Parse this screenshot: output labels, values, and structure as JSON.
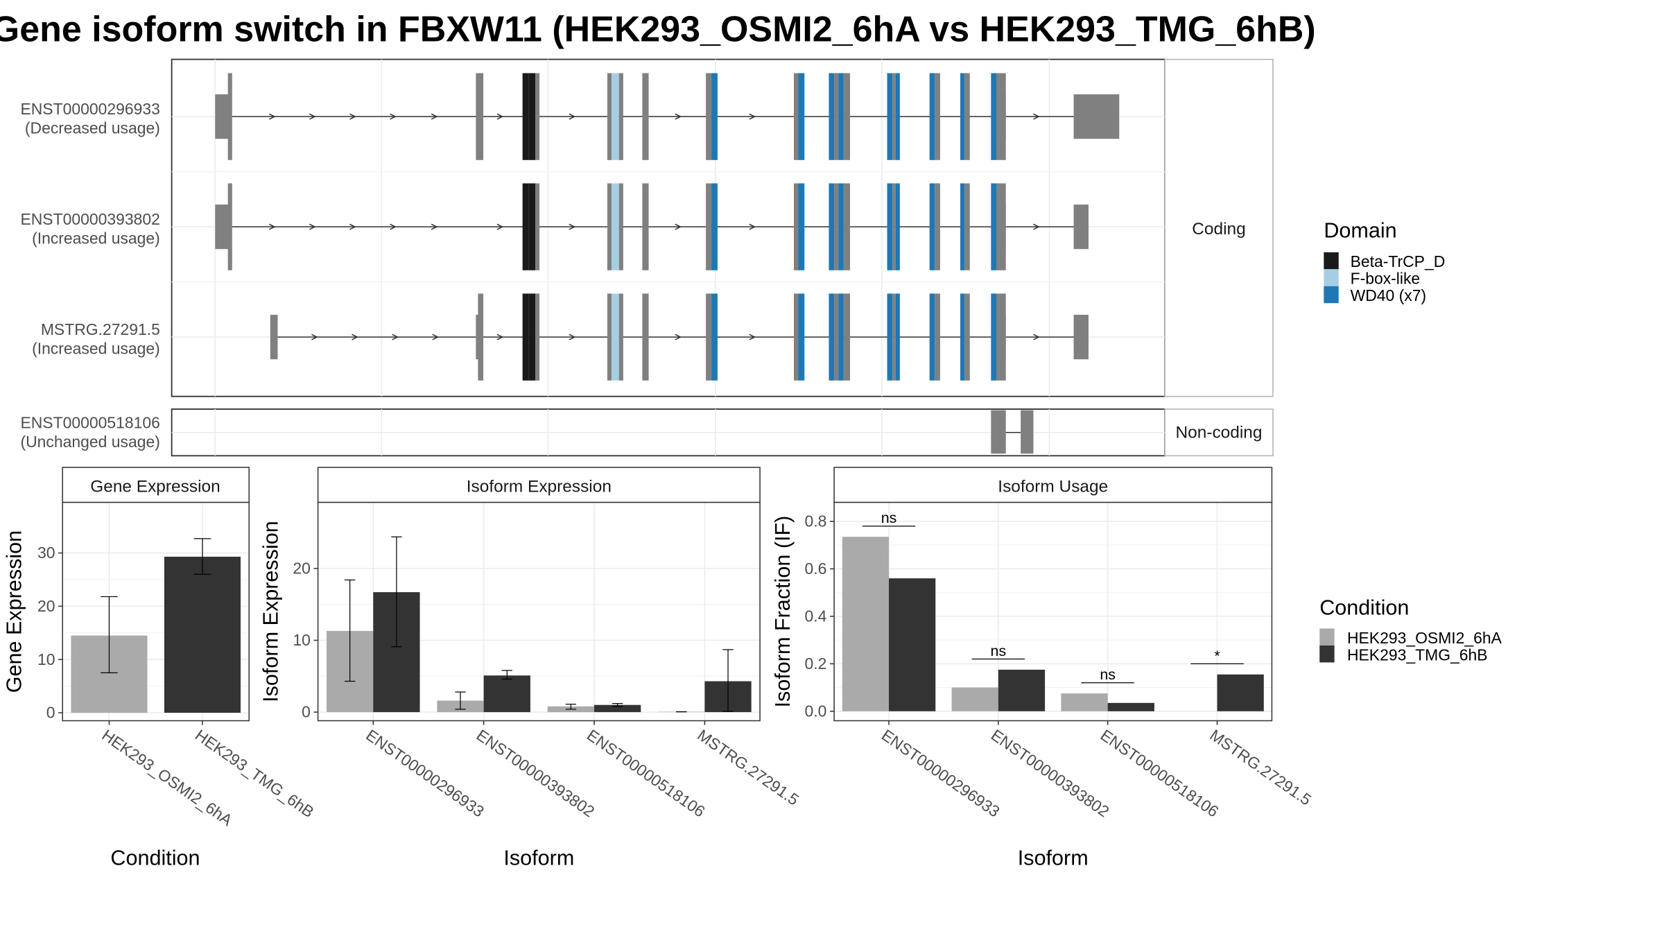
{
  "title": "Gene isoform switch in FBXW11 (HEK293_OSMI2_6hA vs HEK293_TMG_6hB)",
  "transcript_structure": {
    "coding_panel_label": "Coding",
    "noncoding_panel_label": "Non-coding",
    "isoforms": [
      {
        "id": "ENST00000296933",
        "usage": "(Decreased usage)",
        "group": "Coding"
      },
      {
        "id": "ENST00000393802",
        "usage": "(Increased usage)",
        "group": "Coding"
      },
      {
        "id": "MSTRG.27291.5",
        "usage": "(Increased usage)",
        "group": "Coding"
      },
      {
        "id": "ENST00000518106",
        "usage": "(Unchanged usage)",
        "group": "Non-coding"
      }
    ],
    "domain_legend": {
      "title": "Domain",
      "entries": [
        {
          "label": "Beta-TrCP_D",
          "color": "#1a1a1a"
        },
        {
          "label": "F-box-like",
          "color": "#a6cee3"
        },
        {
          "label": "WD40 (x7)",
          "color": "#1f78b4"
        }
      ]
    },
    "exon_color": "#808080"
  },
  "condition_legend": {
    "title": "Condition",
    "entries": [
      {
        "label": "HEK293_OSMI2_6hA",
        "color": "#aaaaaa"
      },
      {
        "label": "HEK293_TMG_6hB",
        "color": "#333333"
      }
    ]
  },
  "chart_data": [
    {
      "type": "bar",
      "title": "Gene Expression",
      "xlabel": "Condition",
      "ylabel": "Gene Expression",
      "categories": [
        "HEK293_OSMI2_6hA",
        "HEK293_TMG_6hB"
      ],
      "values": [
        14.5,
        29.3
      ],
      "error_low": [
        7.5,
        26.0
      ],
      "error_high": [
        21.8,
        32.7
      ],
      "colors": [
        "#aaaaaa",
        "#333333"
      ],
      "ylim": [
        -1.5,
        39.5
      ],
      "yticks": [
        0,
        10,
        20,
        30
      ],
      "grid": true
    },
    {
      "type": "bar",
      "title": "Isoform Expression",
      "xlabel": "Isoform",
      "ylabel": "Isoform Expression",
      "categories": [
        "ENST00000296933",
        "ENST00000393802",
        "ENST00000518106",
        "MSTRG.27291.5"
      ],
      "series": [
        {
          "name": "HEK293_OSMI2_6hA",
          "values": [
            11.3,
            1.6,
            0.8,
            0.05
          ],
          "error_low": [
            4.3,
            0.4,
            0.4,
            0.05
          ],
          "error_high": [
            18.4,
            2.8,
            1.1,
            0.05
          ]
        },
        {
          "name": "HEK293_TMG_6hB",
          "values": [
            16.7,
            5.1,
            1.0,
            4.3
          ],
          "error_low": [
            9.1,
            4.6,
            0.8,
            0.1
          ],
          "error_high": [
            24.4,
            5.8,
            1.2,
            8.7
          ]
        }
      ],
      "ylim": [
        -1.2,
        29.2
      ],
      "yticks": [
        0,
        10,
        20
      ],
      "grid": true
    },
    {
      "type": "bar",
      "title": "Isoform Usage",
      "xlabel": "Isoform",
      "ylabel": "Isoform Fraction (IF)",
      "categories": [
        "ENST00000296933",
        "ENST00000393802",
        "ENST00000518106",
        "MSTRG.27291.5"
      ],
      "series": [
        {
          "name": "HEK293_OSMI2_6hA",
          "values": [
            0.735,
            0.1,
            0.075,
            0.0
          ]
        },
        {
          "name": "HEK293_TMG_6hB",
          "values": [
            0.56,
            0.175,
            0.035,
            0.155
          ]
        }
      ],
      "significance": [
        "ns",
        "ns",
        "ns",
        "*"
      ],
      "ylim": [
        -0.04,
        0.88
      ],
      "yticks": [
        "0.0",
        "0.2",
        "0.4",
        "0.6",
        "0.8"
      ],
      "grid": true
    }
  ]
}
